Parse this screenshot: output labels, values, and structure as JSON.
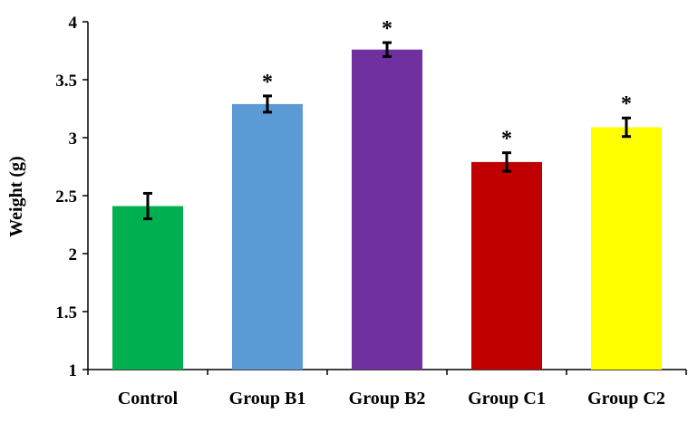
{
  "chart_data": {
    "type": "bar",
    "title": "",
    "xlabel": "",
    "ylabel": "Weight (g)",
    "ylim": [
      1,
      4
    ],
    "yticks": [
      "1",
      "1.5",
      "2",
      "2.5",
      "3",
      "3.5",
      "4"
    ],
    "grid": false,
    "categories": [
      "Control",
      "Group B1",
      "Group B2",
      "Group C1",
      "Group C2"
    ],
    "values": [
      2.41,
      3.29,
      3.76,
      2.79,
      3.09
    ],
    "errors": [
      0.11,
      0.07,
      0.06,
      0.08,
      0.08
    ],
    "significance": [
      "",
      "*",
      "*",
      "*",
      "*"
    ],
    "colors": [
      "#00B050",
      "#5B9BD5",
      "#7030A0",
      "#C00000",
      "#FFFF00"
    ]
  }
}
